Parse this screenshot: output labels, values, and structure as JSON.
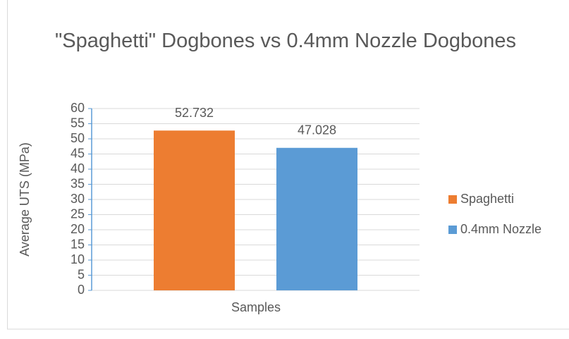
{
  "chart_data": {
    "type": "bar",
    "title": "\"Spaghetti\" Dogbones vs 0.4mm Nozzle Dogbones",
    "ylabel": "Average UTS (MPa)",
    "categories": [
      "Samples"
    ],
    "series": [
      {
        "name": "Spaghetti",
        "color": "#ed7d31",
        "values": [
          52.732
        ]
      },
      {
        "name": "0.4mm Nozzle",
        "color": "#5b9bd5",
        "values": [
          47.028
        ]
      }
    ],
    "ylim": [
      0,
      60
    ],
    "yticks": [
      0,
      5,
      10,
      15,
      20,
      25,
      30,
      35,
      40,
      45,
      50,
      55,
      60
    ],
    "grid": true,
    "legend": "right"
  }
}
